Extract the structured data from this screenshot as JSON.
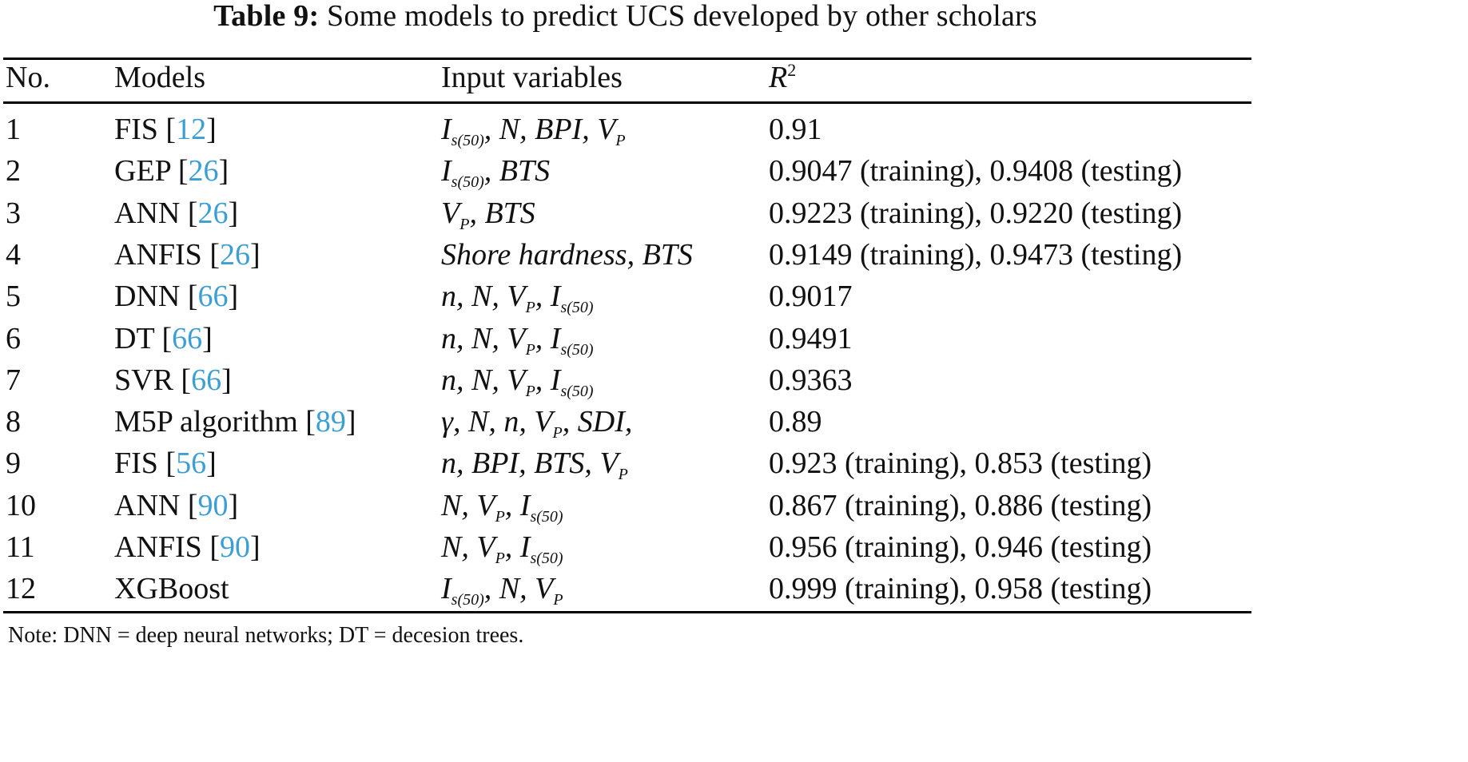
{
  "caption": {
    "label": "Table 9:",
    "text": "Some models to predict UCS developed by other scholars"
  },
  "table": {
    "headers": {
      "no": "No.",
      "models": "Models",
      "inputs": "Input variables",
      "r2_base": "R",
      "r2_sup": "2"
    },
    "rows": [
      {
        "no": "1",
        "model": "FIS",
        "ref": "12",
        "inputs": [
          {
            "t": "I",
            "s": "s(50)"
          },
          {
            "t": ", N, BPI, "
          },
          {
            "t": "V",
            "s": "P"
          }
        ],
        "r2": "0.91"
      },
      {
        "no": "2",
        "model": "GEP",
        "ref": "26",
        "inputs": [
          {
            "t": "I",
            "s": "s(50)"
          },
          {
            "t": ", BTS"
          }
        ],
        "r2": "0.9047 (training), 0.9408 (testing)"
      },
      {
        "no": "3",
        "model": "ANN",
        "ref": "26",
        "inputs": [
          {
            "t": "V",
            "s": "P"
          },
          {
            "t": ", BTS"
          }
        ],
        "r2": "0.9223 (training), 0.9220 (testing)"
      },
      {
        "no": "4",
        "model": "ANFIS",
        "ref": "26",
        "inputs": [
          {
            "t": "Shore hardness, BTS"
          }
        ],
        "r2": "0.9149 (training), 0.9473 (testing)"
      },
      {
        "no": "5",
        "model": "DNN",
        "ref": "66",
        "inputs": [
          {
            "t": "n, N, "
          },
          {
            "t": "V",
            "s": "P"
          },
          {
            "t": ", "
          },
          {
            "t": "I",
            "s": "s(50)"
          }
        ],
        "r2": "0.9017"
      },
      {
        "no": "6",
        "model": "DT",
        "ref": "66",
        "inputs": [
          {
            "t": "n, N, "
          },
          {
            "t": "V",
            "s": "P"
          },
          {
            "t": ", "
          },
          {
            "t": "I",
            "s": "s(50)"
          }
        ],
        "r2": "0.9491"
      },
      {
        "no": "7",
        "model": "SVR",
        "ref": "66",
        "inputs": [
          {
            "t": "n, N, "
          },
          {
            "t": "V",
            "s": "P"
          },
          {
            "t": ", "
          },
          {
            "t": "I",
            "s": "s(50)"
          }
        ],
        "r2": "0.9363"
      },
      {
        "no": "8",
        "model": "M5P algorithm",
        "ref": "89",
        "inputs": [
          {
            "t": "γ, N, n, "
          },
          {
            "t": "V",
            "s": "P"
          },
          {
            "t": ", SDI,"
          }
        ],
        "r2": "0.89"
      },
      {
        "no": "9",
        "model": "FIS",
        "ref": "56",
        "inputs": [
          {
            "t": "n, BPI, BTS, "
          },
          {
            "t": "V",
            "s": "P"
          }
        ],
        "r2": "0.923 (training), 0.853 (testing)"
      },
      {
        "no": "10",
        "model": "ANN",
        "ref": "90",
        "inputs": [
          {
            "t": "N, "
          },
          {
            "t": "V",
            "s": "P"
          },
          {
            "t": ", "
          },
          {
            "t": "I",
            "s": "s(50)"
          }
        ],
        "r2": "0.867 (training), 0.886 (testing)"
      },
      {
        "no": "11",
        "model": "ANFIS",
        "ref": "90",
        "inputs": [
          {
            "t": "N, "
          },
          {
            "t": "V",
            "s": "P"
          },
          {
            "t": ", "
          },
          {
            "t": "I",
            "s": "s(50)"
          }
        ],
        "r2": "0.956 (training), 0.946 (testing)"
      },
      {
        "no": "12",
        "model": "XGBoost",
        "ref": null,
        "inputs": [
          {
            "t": "I",
            "s": "s(50)"
          },
          {
            "t": ", N, "
          },
          {
            "t": "V",
            "s": "P"
          }
        ],
        "r2": "0.999 (training), 0.958 (testing)"
      }
    ]
  },
  "note": "Note: DNN = deep neural networks; DT = decesion trees.",
  "colors": {
    "reference_link": "#3b9fd6",
    "text": "#111111",
    "rules": "#000000"
  }
}
